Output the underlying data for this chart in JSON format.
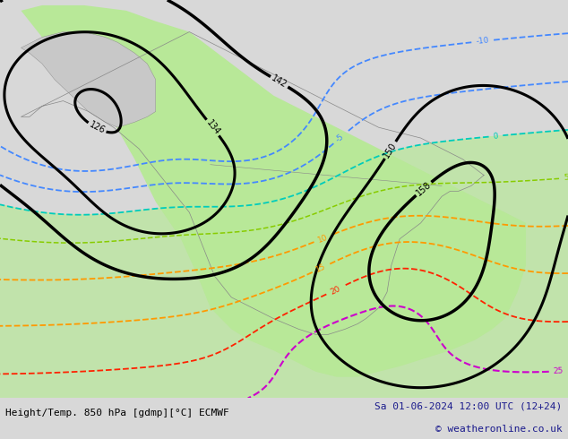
{
  "bottom_left_text": "Height/Temp. 850 hPa [gdmp][°C] ECMWF",
  "bottom_right_text1": "Sa 01-06-2024 12:00 UTC (12+24)",
  "bottom_right_text2": "© weatheronline.co.uk",
  "figure_size": [
    6.34,
    4.9
  ],
  "dpi": 100,
  "bg_color": "#d8d8d8",
  "map_bg_color": "#d0d0d0",
  "bottom_bg": "#ffffff",
  "bottom_left_color": "#000000",
  "bottom_right_color": "#1a1a8c",
  "land_green": "#b8e898",
  "land_gray": "#c8c8c8",
  "ocean_gray": "#d0d0d0"
}
